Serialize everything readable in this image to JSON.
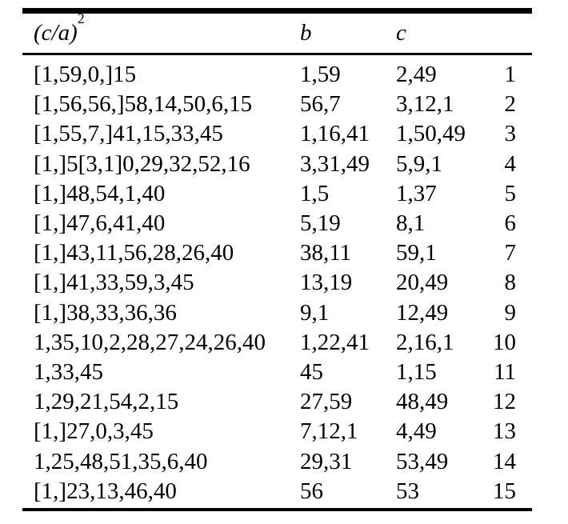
{
  "page": {
    "background": "#ffffff",
    "text_color": "#000000",
    "rule_color": "#000000"
  },
  "table": {
    "header": {
      "ca_base": "(c/a)",
      "ca_sup": "2",
      "b": "b",
      "c": "c"
    },
    "rows": [
      {
        "ca": "[1,59,0,]15",
        "b": "1,59",
        "c": "2,49",
        "n": "1"
      },
      {
        "ca": "[1,56,56,]58,14,50,6,15",
        "b": "56,7",
        "c": "3,12,1",
        "n": "2"
      },
      {
        "ca": "[1,55,7,]41,15,33,45",
        "b": "1,16,41",
        "c": "1,50,49",
        "n": "3"
      },
      {
        "ca": "[1,]5[3,1]0,29,32,52,16",
        "b": "3,31,49",
        "c": "5,9,1",
        "n": "4"
      },
      {
        "ca": "[1,]48,54,1,40",
        "b": "1,5",
        "c": "1,37",
        "n": "5"
      },
      {
        "ca": "[1,]47,6,41,40",
        "b": "5,19",
        "c": "8,1",
        "n": "6"
      },
      {
        "ca": "[1,]43,11,56,28,26,40",
        "b": "38,11",
        "c": "59,1",
        "n": "7"
      },
      {
        "ca": "[1,]41,33,59,3,45",
        "b": "13,19",
        "c": "20,49",
        "n": "8"
      },
      {
        "ca": "[1,]38,33,36,36",
        "b": "9,1",
        "c": "12,49",
        "n": "9"
      },
      {
        "ca": "1,35,10,2,28,27,24,26,40",
        "b": "1,22,41",
        "c": "2,16,1",
        "n": "10"
      },
      {
        "ca": "1,33,45",
        "b": "45",
        "c": "1,15",
        "n": "11"
      },
      {
        "ca": "1,29,21,54,2,15",
        "b": "27,59",
        "c": "48,49",
        "n": "12"
      },
      {
        "ca": "[1,]27,0,3,45",
        "b": "7,12,1",
        "c": "4,49",
        "n": "13"
      },
      {
        "ca": "1,25,48,51,35,6,40",
        "b": "29,31",
        "c": "53,49",
        "n": "14"
      },
      {
        "ca": "[1,]23,13,46,40",
        "b": "56",
        "c": "53",
        "n": "15"
      }
    ]
  }
}
